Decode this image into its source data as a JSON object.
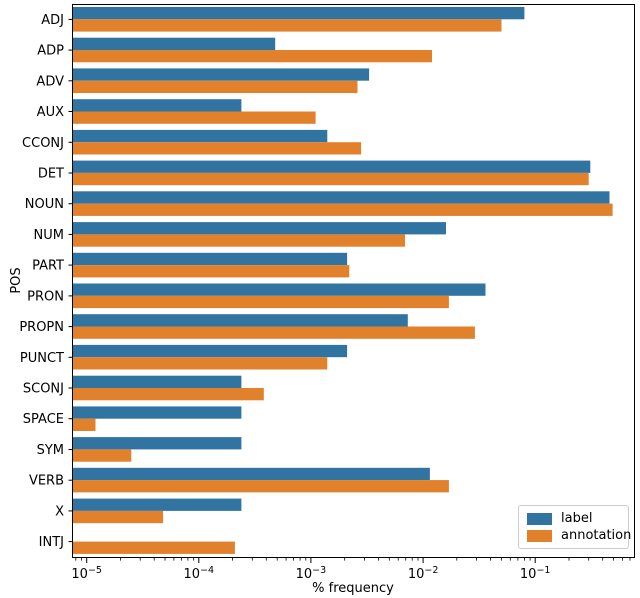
{
  "figure": {
    "background": "#ffffff",
    "text_color": "#000000",
    "spine_color": "#000000"
  },
  "chart_data": {
    "type": "bar",
    "orientation": "horizontal",
    "xscale": "log",
    "grid": false,
    "title": "",
    "xlabel": "% frequency",
    "ylabel": "POS",
    "xlim": [
      7.4e-06,
      0.76
    ],
    "categories": [
      "ADJ",
      "ADP",
      "ADV",
      "AUX",
      "CCONJ",
      "DET",
      "NOUN",
      "NUM",
      "PART",
      "PRON",
      "PROPN",
      "PUNCT",
      "SCONJ",
      "SPACE",
      "SYM",
      "VERB",
      "X",
      "INTJ"
    ],
    "series": [
      {
        "name": "label",
        "color": "#3274a1",
        "values": [
          0.08,
          0.00048,
          0.0033,
          0.00024,
          0.0014,
          0.31,
          0.46,
          0.016,
          0.0021,
          0.036,
          0.0073,
          0.0021,
          0.00024,
          0.00024,
          0.00024,
          0.0115,
          0.00024,
          null
        ]
      },
      {
        "name": "annotation",
        "color": "#e1812c",
        "values": [
          0.05,
          0.012,
          0.0026,
          0.0011,
          0.0028,
          0.3,
          0.49,
          0.0069,
          0.0022,
          0.017,
          0.029,
          0.0014,
          0.00038,
          1.2e-05,
          2.5e-05,
          0.017,
          4.8e-05,
          0.00021
        ]
      }
    ],
    "xticks": [
      {
        "base": "10",
        "sup": "−5",
        "value": 1e-05
      },
      {
        "base": "10",
        "sup": "−4",
        "value": 0.0001
      },
      {
        "base": "10",
        "sup": "−3",
        "value": 0.001
      },
      {
        "base": "10",
        "sup": "−2",
        "value": 0.01
      },
      {
        "base": "10",
        "sup": "−1",
        "value": 0.1
      }
    ],
    "legend": {
      "position": "lower right",
      "entries": [
        "label",
        "annotation"
      ]
    }
  }
}
